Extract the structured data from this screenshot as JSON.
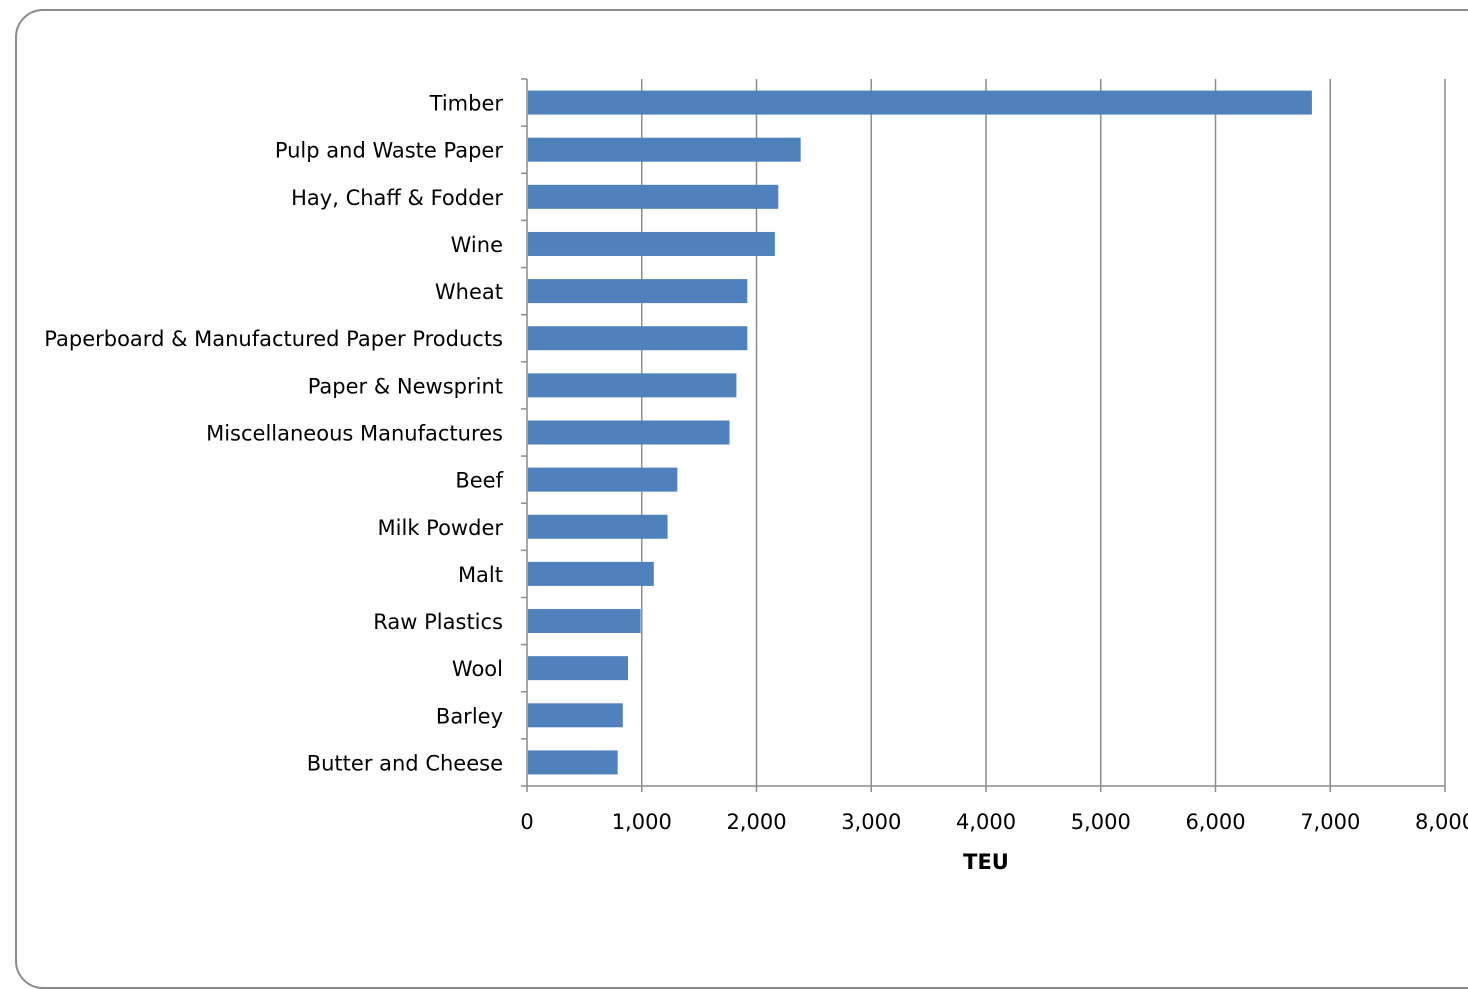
{
  "chart_data": {
    "type": "bar",
    "orientation": "horizontal",
    "title": "",
    "xlabel": "TEU",
    "ylabel": "",
    "xlim": [
      0,
      8000
    ],
    "x_ticks": [
      0,
      1000,
      2000,
      3000,
      4000,
      5000,
      6000,
      7000,
      8000
    ],
    "x_tick_labels": [
      "0",
      "1,000",
      "2,000",
      "3,000",
      "4,000",
      "5,000",
      "6,000",
      "7,000",
      "8,000"
    ],
    "grid": "vertical-major",
    "legend": "none",
    "bar_color": "#4f81bd",
    "categories": [
      "Timber",
      "Pulp and Waste Paper",
      "Hay, Chaff & Fodder",
      "Wine",
      "Wheat",
      "Paperboard & Manufactured Paper Products",
      "Paper & Newsprint",
      "Miscellaneous Manufactures",
      "Beef",
      "Milk Powder",
      "Malt",
      "Raw Plastics",
      "Wool",
      "Barley",
      "Butter and Cheese"
    ],
    "values": [
      6840,
      2385,
      2190,
      2160,
      1920,
      1920,
      1825,
      1765,
      1310,
      1225,
      1105,
      990,
      880,
      835,
      790
    ]
  }
}
